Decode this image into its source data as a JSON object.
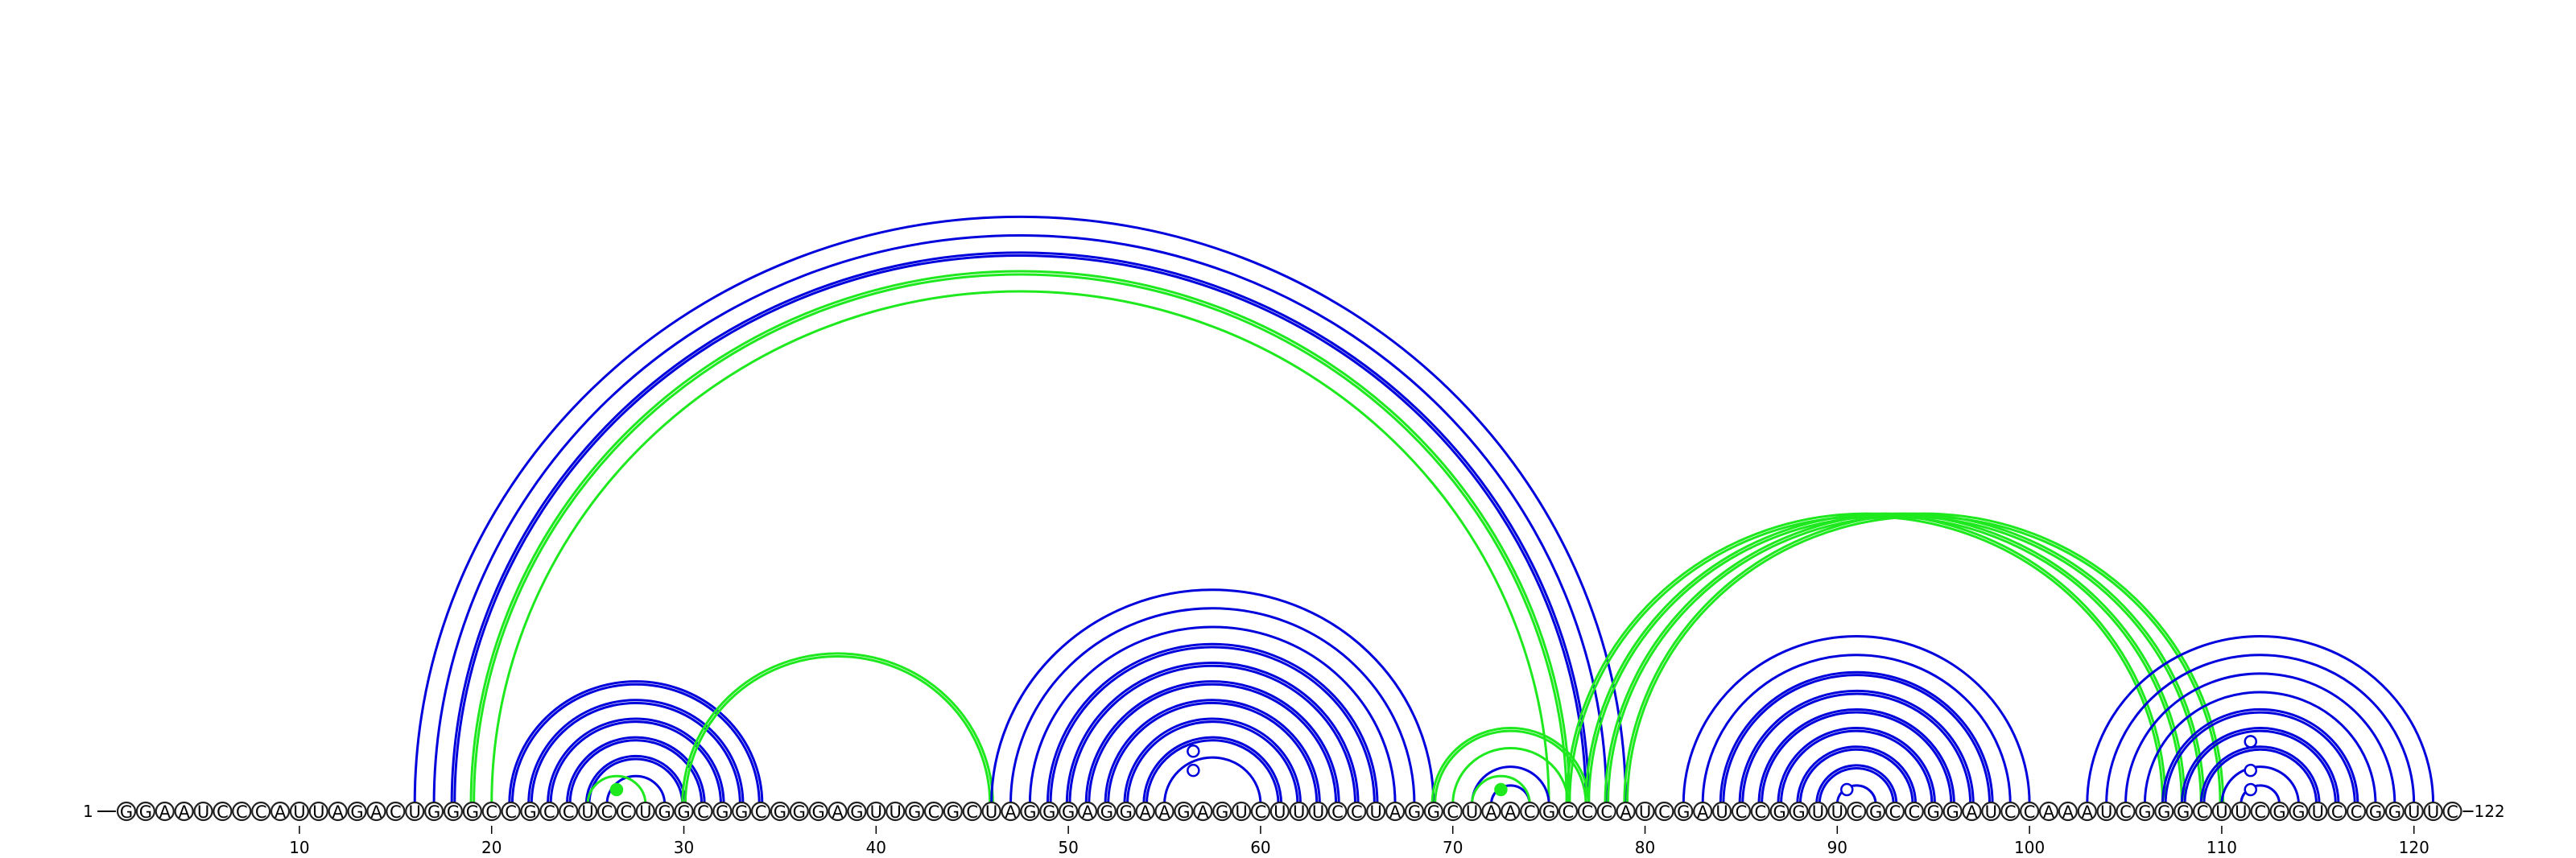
{
  "sequence": "GGAAUCCCAUUAGACUGGGCCGCCUCCUGGCGGCGGGAGUUGCGCUAGGGAGGAAGAGUCUUUCCUAGGCUAACGCCCAUCGAUCCGGUUCGCCGGAUCCAAAUCGGGCUUCGGUCCGGUUC",
  "start_label": "1",
  "end_label": "122",
  "ticks": [
    10,
    20,
    30,
    40,
    50,
    60,
    70,
    80,
    90,
    100,
    110,
    120
  ],
  "colors": {
    "blue": "#0000dd",
    "green": "#1ee81e",
    "outline": "#222222"
  },
  "arc_groups": [
    {
      "color": "blue",
      "style": "single",
      "pairs": [
        [
          16,
          79
        ],
        [
          17,
          78
        ]
      ]
    },
    {
      "color": "blue",
      "style": "double",
      "pairs": [
        [
          18,
          77
        ]
      ]
    },
    {
      "color": "green",
      "style": "double",
      "pairs": [
        [
          19,
          76
        ]
      ]
    },
    {
      "color": "green",
      "style": "single",
      "pairs": [
        [
          20,
          75
        ]
      ]
    },
    {
      "color": "blue",
      "style": "double",
      "pairs": [
        [
          21,
          34
        ],
        [
          22,
          33
        ],
        [
          23,
          32
        ],
        [
          24,
          31
        ],
        [
          25,
          30
        ]
      ]
    },
    {
      "color": "blue",
      "style": "single",
      "pairs": [
        [
          26,
          29
        ]
      ]
    },
    {
      "color": "green",
      "style": "single",
      "pairs": [
        [
          25,
          28
        ]
      ]
    },
    {
      "color": "green",
      "style": "double",
      "pairs": [
        [
          30,
          46
        ]
      ]
    },
    {
      "color": "blue",
      "style": "single",
      "pairs": [
        [
          46,
          69
        ],
        [
          47,
          68
        ],
        [
          48,
          67
        ]
      ]
    },
    {
      "color": "blue",
      "style": "double",
      "pairs": [
        [
          49,
          66
        ],
        [
          50,
          65
        ],
        [
          51,
          64
        ],
        [
          52,
          63
        ],
        [
          53,
          62
        ],
        [
          54,
          61
        ]
      ]
    },
    {
      "color": "blue",
      "style": "single",
      "pairs": [
        [
          55,
          60
        ]
      ]
    },
    {
      "color": "green",
      "style": "double",
      "pairs": [
        [
          69,
          77
        ]
      ]
    },
    {
      "color": "green",
      "style": "single",
      "pairs": [
        [
          70,
          76
        ]
      ]
    },
    {
      "color": "blue",
      "style": "single",
      "pairs": [
        [
          71,
          75
        ],
        [
          72,
          74
        ]
      ]
    },
    {
      "color": "green",
      "style": "single",
      "pairs": [
        [
          71,
          74
        ]
      ]
    },
    {
      "color": "green",
      "style": "double",
      "pairs": [
        [
          76,
          107
        ],
        [
          77,
          108
        ],
        [
          78,
          109
        ],
        [
          79,
          110
        ]
      ]
    },
    {
      "color": "blue",
      "style": "single",
      "pairs": [
        [
          82,
          100
        ],
        [
          83,
          99
        ]
      ]
    },
    {
      "color": "blue",
      "style": "double",
      "pairs": [
        [
          84,
          98
        ],
        [
          85,
          97
        ],
        [
          86,
          96
        ],
        [
          87,
          95
        ],
        [
          88,
          94
        ],
        [
          89,
          93
        ]
      ]
    },
    {
      "color": "blue",
      "style": "single",
      "pairs": [
        [
          90,
          92
        ]
      ]
    },
    {
      "color": "blue",
      "style": "single",
      "pairs": [
        [
          103,
          121
        ],
        [
          104,
          120
        ],
        [
          105,
          119
        ],
        [
          106,
          118
        ]
      ]
    },
    {
      "color": "blue",
      "style": "double",
      "pairs": [
        [
          107,
          117
        ],
        [
          108,
          116
        ],
        [
          109,
          115
        ]
      ]
    },
    {
      "color": "blue",
      "style": "single",
      "pairs": [
        [
          110,
          114
        ],
        [
          111,
          113
        ]
      ]
    }
  ],
  "markers": [
    {
      "pos": 26.5,
      "level": 1,
      "color": "green",
      "filled": true
    },
    {
      "pos": 72.5,
      "level": 1,
      "color": "green",
      "filled": true
    },
    {
      "pos": 56.5,
      "level": 3,
      "color": "blue",
      "filled": false
    },
    {
      "pos": 56.5,
      "level": 5,
      "color": "blue",
      "filled": false
    },
    {
      "pos": 90.5,
      "level": 1,
      "color": "blue",
      "filled": false
    },
    {
      "pos": 111.5,
      "level": 1,
      "color": "blue",
      "filled": false
    },
    {
      "pos": 111.5,
      "level": 3,
      "color": "blue",
      "filled": false
    },
    {
      "pos": 111.5,
      "level": 6,
      "color": "blue",
      "filled": false
    }
  ]
}
